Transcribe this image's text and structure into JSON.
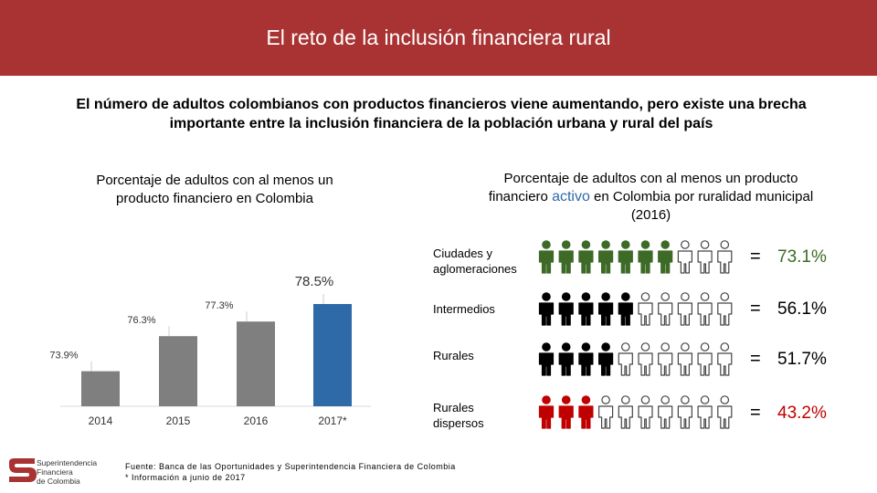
{
  "header": {
    "title": "El reto de la inclusión financiera rural"
  },
  "subtitle": {
    "line1": "El número de adultos colombianos con productos financieros viene aumentando, pero existe una brecha",
    "line2": "importante entre la inclusión financiera de la población urbana y rural del país"
  },
  "chart_data": [
    {
      "type": "bar",
      "title_line1": "Porcentaje de adultos con al menos un",
      "title_line2": "producto financiero en Colombia",
      "categories": [
        "2014",
        "2015",
        "2016",
        "2017*"
      ],
      "values": [
        73.9,
        76.3,
        77.3,
        78.5
      ],
      "labels": [
        "73.9%",
        "76.3%",
        "77.3%",
        "78.5%"
      ],
      "colors": [
        "#7f7f7f",
        "#7f7f7f",
        "#7f7f7f",
        "#2e6aa8"
      ],
      "ylim": [
        71.5,
        79
      ],
      "grid": false
    },
    {
      "type": "table",
      "title_line1": "Porcentaje de adultos con al menos un producto",
      "title_pre": "financiero ",
      "title_accent": "activo",
      "title_post": " en Colombia por ruralidad municipal",
      "title_line3": "(2016)",
      "rows": [
        {
          "label1": "Ciudades y",
          "label2": "aglomeraciones",
          "value": 73.1,
          "display": "73.1%",
          "filled": 7,
          "total": 10,
          "color": "#3d6b27"
        },
        {
          "label1": "Intermedios",
          "label2": "",
          "value": 56.1,
          "display": "56.1%",
          "filled": 5,
          "total": 10,
          "color": "#000000"
        },
        {
          "label1": "Rurales",
          "label2": "",
          "value": 51.7,
          "display": "51.7%",
          "filled": 4,
          "total": 10,
          "color": "#000000"
        },
        {
          "label1": "Rurales",
          "label2": "dispersos",
          "value": 43.2,
          "display": "43.2%",
          "filled": 3,
          "total": 10,
          "color": "#c00000"
        }
      ],
      "equals": "="
    }
  ],
  "footnote": {
    "line1": "Fuente: Banca de las Oportunidades y Superintendencia Financiera de Colombia",
    "line2": "* Información a junio de 2017"
  },
  "logo": {
    "line1": "Superintendencia",
    "line2": "Financiera",
    "line3": "de Colombia",
    "color": "#a93333"
  }
}
